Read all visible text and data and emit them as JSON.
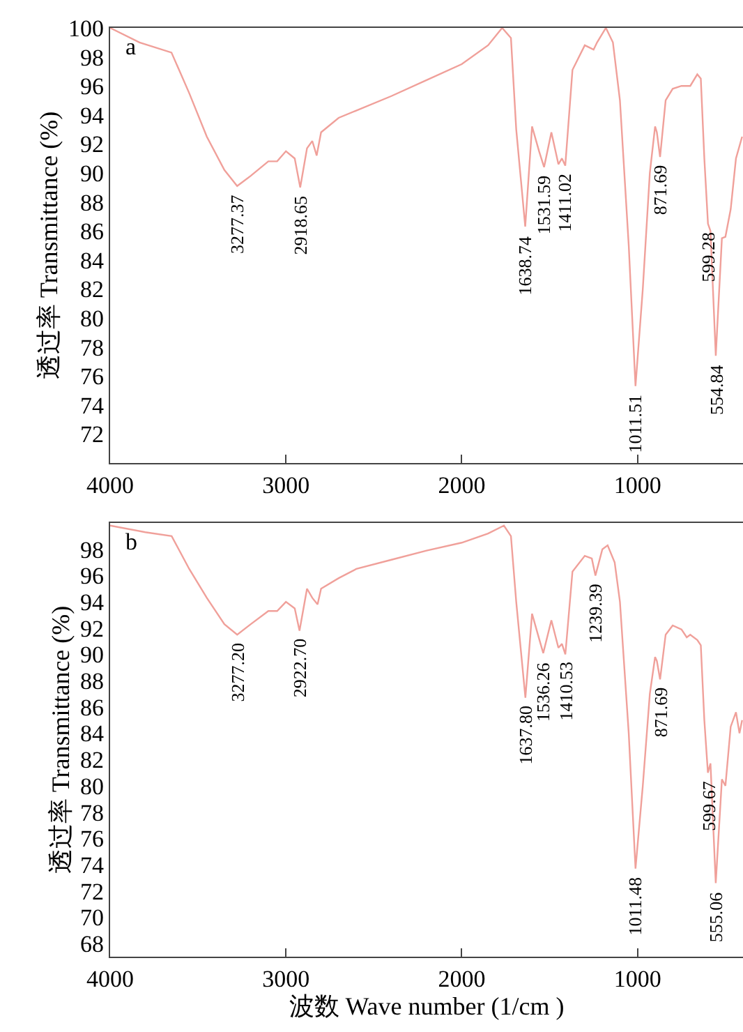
{
  "chart_data": [
    {
      "type": "line",
      "ylabel": "透过率 Transmittance (%)",
      "xlim": [
        4000,
        400
      ],
      "ylim": [
        70,
        100
      ],
      "xticks": [
        4000,
        3000,
        2000,
        1000
      ],
      "yticks": [
        72,
        74,
        76,
        78,
        80,
        82,
        84,
        86,
        88,
        90,
        92,
        94,
        96,
        98,
        100
      ],
      "series": [
        {
          "color": "#f0a09a",
          "x": [
            4000,
            3833,
            3651,
            3550,
            3450,
            3350,
            3277.37,
            3200,
            3100,
            3050,
            3000,
            2950,
            2918.65,
            2880,
            2850,
            2825,
            2800,
            2700,
            2600,
            2400,
            2200,
            2000,
            1850,
            1770,
            1720,
            1690,
            1638.74,
            1600,
            1560,
            1531.59,
            1490,
            1450,
            1430,
            1411.02,
            1370,
            1300,
            1250,
            1230,
            1180,
            1140,
            1100,
            1050,
            1011.51,
            970,
            930,
            900,
            890,
            871.69,
            840,
            800,
            750,
            700,
            660,
            640,
            620,
            599.28,
            585,
            554.84,
            520,
            500,
            470,
            440,
            405
          ],
          "values": [
            100,
            99.0,
            98.3,
            95.5,
            92.5,
            90.2,
            89.1,
            89.8,
            90.8,
            90.8,
            91.5,
            91.0,
            89.0,
            91.7,
            92.2,
            91.2,
            92.8,
            93.8,
            94.3,
            95.3,
            96.4,
            97.5,
            98.8,
            100,
            99.3,
            93,
            86.3,
            93.2,
            91.5,
            90.4,
            92.8,
            90.6,
            91.0,
            90.5,
            97.1,
            98.8,
            98.5,
            99.0,
            100,
            99,
            95,
            85,
            75.3,
            82,
            90,
            93.2,
            92.8,
            91.1,
            95,
            95.8,
            96.0,
            96.0,
            96.8,
            96.5,
            91,
            86.5,
            86.0,
            77.4,
            85.5,
            85.6,
            87.5,
            91,
            92.5
          ]
        }
      ],
      "annotations": [
        "a",
        {
          "text": "3277.37",
          "x": 3277.37,
          "y": 89.1
        },
        {
          "text": "2918.65",
          "x": 2918.65,
          "y": 89.0
        },
        {
          "text": "1638.74",
          "x": 1638.74,
          "y": 86.3
        },
        {
          "text": "1531.59",
          "x": 1531.59,
          "y": 90.4
        },
        {
          "text": "1411.02",
          "x": 1411.02,
          "y": 90.5
        },
        {
          "text": "1011.51",
          "x": 1011.51,
          "y": 75.3
        },
        {
          "text": "871.69",
          "x": 871.69,
          "y": 91.1
        },
        {
          "text": "599.28",
          "x": 599.28,
          "y": 86.5
        },
        {
          "text": "554.84",
          "x": 554.84,
          "y": 77.4
        }
      ]
    },
    {
      "type": "line",
      "xlabel": "波数 Wave number (1/cm )",
      "ylabel": "透过率 Transmittance (%)",
      "xlim": [
        4000,
        400
      ],
      "ylim": [
        67,
        100
      ],
      "xticks": [
        4000,
        3000,
        2000,
        1000
      ],
      "yticks": [
        68,
        70,
        72,
        74,
        76,
        78,
        80,
        82,
        84,
        86,
        88,
        90,
        92,
        94,
        96,
        98
      ],
      "series": [
        {
          "color": "#f0a09a",
          "x": [
            4000,
            3800,
            3650,
            3550,
            3450,
            3350,
            3277.2,
            3200,
            3100,
            3050,
            3000,
            2950,
            2922.7,
            2880,
            2850,
            2820,
            2800,
            2700,
            2600,
            2400,
            2200,
            2000,
            1850,
            1760,
            1720,
            1690,
            1637.8,
            1600,
            1560,
            1536.26,
            1490,
            1450,
            1430,
            1410.53,
            1370,
            1300,
            1260,
            1239.39,
            1200,
            1170,
            1130,
            1100,
            1050,
            1011.48,
            970,
            930,
            900,
            890,
            871.69,
            840,
            800,
            750,
            720,
            700,
            660,
            640,
            620,
            599.67,
            585,
            555.06,
            520,
            500,
            470,
            440,
            420,
            405
          ],
          "values": [
            99.8,
            99.3,
            99.0,
            96.5,
            94.3,
            92.3,
            91.5,
            92.3,
            93.3,
            93.3,
            94.0,
            93.5,
            91.8,
            95.0,
            94.3,
            93.8,
            95.0,
            95.8,
            96.5,
            97.2,
            97.9,
            98.5,
            99.2,
            99.8,
            99.0,
            94,
            86.7,
            93.1,
            91.2,
            90.1,
            92.6,
            90.5,
            90.8,
            90.0,
            96.3,
            97.5,
            97.3,
            96.0,
            98.0,
            98.3,
            97,
            94,
            84,
            73.7,
            80,
            87,
            89.8,
            89.5,
            88.1,
            91.5,
            92.2,
            91.9,
            91.3,
            91.5,
            91.1,
            90.7,
            85,
            81.0,
            81.7,
            72.6,
            80.5,
            80.0,
            84.5,
            85.6,
            84.0,
            85
          ]
        }
      ],
      "annotations": [
        "b",
        {
          "text": "3277.20",
          "x": 3277.2,
          "y": 91.5
        },
        {
          "text": "2922.70",
          "x": 2922.7,
          "y": 91.8
        },
        {
          "text": "1637.80",
          "x": 1637.8,
          "y": 86.7
        },
        {
          "text": "1536.26",
          "x": 1536.26,
          "y": 90.1
        },
        {
          "text": "1410.53",
          "x": 1410.53,
          "y": 90.0
        },
        {
          "text": "1239.39",
          "x": 1239.39,
          "y": 96.0
        },
        {
          "text": "1011.48",
          "x": 1011.48,
          "y": 73.7
        },
        {
          "text": "871.69",
          "x": 871.69,
          "y": 88.1
        },
        {
          "text": "599.67",
          "x": 599.67,
          "y": 81.0
        },
        {
          "text": "555.06",
          "x": 555.06,
          "y": 72.6
        }
      ]
    }
  ]
}
